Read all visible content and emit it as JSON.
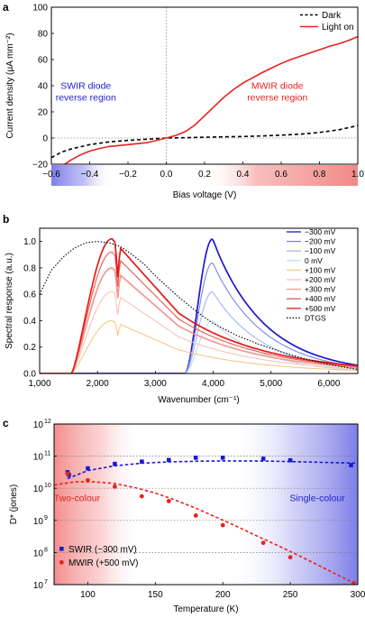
{
  "panels": {
    "a": {
      "letter": "a",
      "chart_data": {
        "type": "line",
        "xlabel": "Bias voltage (V)",
        "ylabel": "Current density (μA mm⁻²)",
        "xlim": [
          -0.6,
          1.0
        ],
        "ylim": [
          -20,
          100
        ],
        "xticks": [
          "−0.6",
          "−0.4",
          "−0.2",
          "0.0",
          "0.2",
          "0.4",
          "0.6",
          "0.8",
          "1.0"
        ],
        "xtick_values": [
          -0.6,
          -0.4,
          -0.2,
          0.0,
          0.2,
          0.4,
          0.6,
          0.8,
          1.0
        ],
        "yticks": [
          "−20",
          "0",
          "20",
          "40",
          "60",
          "80",
          "100"
        ],
        "ytick_values": [
          -20,
          0,
          20,
          40,
          60,
          80,
          100
        ],
        "legend_position": "top-right",
        "series": [
          {
            "name": "Dark",
            "style": "dashed",
            "color": "#000000",
            "x": [
              -0.6,
              -0.55,
              -0.5,
              -0.4,
              -0.3,
              -0.2,
              -0.1,
              0.0,
              0.1,
              0.2,
              0.3,
              0.4,
              0.5,
              0.6,
              0.7,
              0.8,
              0.9,
              1.0
            ],
            "y": [
              -15,
              -11,
              -8.5,
              -5,
              -3,
              -1.8,
              -0.9,
              0,
              0.3,
              0.6,
              0.9,
              1.2,
              1.6,
              2.2,
              3,
              4.3,
              6.3,
              9.5
            ]
          },
          {
            "name": "Light on",
            "style": "solid",
            "color": "#e8221e",
            "x": [
              -0.6,
              -0.55,
              -0.5,
              -0.45,
              -0.4,
              -0.35,
              -0.3,
              -0.2,
              -0.1,
              0.0,
              0.05,
              0.1,
              0.15,
              0.2,
              0.25,
              0.3,
              0.35,
              0.4,
              0.45,
              0.5,
              0.55,
              0.6,
              0.65,
              0.7,
              0.75,
              0.8,
              0.85,
              0.9,
              0.95,
              1.0
            ],
            "y": [
              -30,
              -22,
              -17,
              -13,
              -10,
              -8,
              -6.5,
              -5,
              -3.5,
              0,
              2,
              5,
              10,
              17,
              24,
              31,
              37,
              42,
              46,
              50,
              53.5,
              57,
              60,
              62.5,
              65,
              67.5,
              70,
              72,
              74.5,
              77.5
            ]
          }
        ],
        "annotations": [
          {
            "text": "SWIR diode\nreverse region",
            "color": "#2222cc",
            "x": -0.42,
            "y": 35
          },
          {
            "text": "MWIR diode\nreverse region",
            "color": "#e8221e",
            "x": 0.58,
            "y": 35
          }
        ],
        "shaded_regions": [
          {
            "x": [
              -0.6,
              -0.28
            ],
            "color": "#7c7cf0",
            "note": "gradient below axis"
          },
          {
            "x": [
              0.18,
              1.0
            ],
            "color": "#f08080",
            "note": "gradient below axis"
          }
        ]
      }
    },
    "b": {
      "letter": "b",
      "chart_data": {
        "type": "line",
        "xlabel": "Wavenumber (cm⁻¹)",
        "ylabel": "Spectral response (a.u.)",
        "xlim": [
          1000,
          6500
        ],
        "ylim": [
          0,
          1.1
        ],
        "xticks": [
          "1,000",
          "2,000",
          "3,000",
          "4,000",
          "5,000",
          "6,000"
        ],
        "xtick_values": [
          1000,
          2000,
          3000,
          4000,
          5000,
          6000
        ],
        "yticks": [
          "0.0",
          "0.2",
          "0.4",
          "0.6",
          "0.8",
          "1.0"
        ],
        "ytick_values": [
          0,
          0.2,
          0.4,
          0.6,
          0.8,
          1.0
        ],
        "legend_position": "top-right",
        "series": [
          {
            "name": "−300 mV",
            "color": "#1a1acd",
            "band": "swir",
            "peak": 1.02
          },
          {
            "name": "−200 mV",
            "color": "#7a86e0",
            "band": "swir",
            "peak": 0.84
          },
          {
            "name": "−100 mV",
            "color": "#9fb8ee",
            "band": "swir",
            "peak": 0.62
          },
          {
            "name": "0 mV",
            "color": "#c9d8f4",
            "band": "swir",
            "peak": 0.4
          },
          {
            "name": "+100 mV",
            "color": "#f5c98a",
            "band": "mwir",
            "peak": 0.4
          },
          {
            "name": "+200 mV",
            "color": "#f6c3b8",
            "band": "mwir",
            "peak": 0.62
          },
          {
            "name": "+300 mV",
            "color": "#ee9a90",
            "band": "mwir",
            "peak": 0.8
          },
          {
            "name": "+400 mV",
            "color": "#e85a4f",
            "band": "mwir",
            "peak": 0.92
          },
          {
            "name": "+500 mV",
            "color": "#e41a1a",
            "band": "mwir",
            "peak": 1.02
          },
          {
            "name": "DTGS",
            "color": "#000000",
            "band": "dtgs",
            "style": "dotted",
            "x": [
              1000,
              1200,
              1400,
              1600,
              1800,
              2000,
              2200,
              2400,
              2600,
              2800,
              3000,
              3200,
              3400,
              3600,
              3800,
              4000,
              4400,
              4800,
              5200,
              5600,
              6000,
              6500
            ],
            "y": [
              0.6,
              0.78,
              0.88,
              0.95,
              0.99,
              1.0,
              0.99,
              0.96,
              0.9,
              0.83,
              0.74,
              0.66,
              0.58,
              0.51,
              0.44,
              0.38,
              0.29,
              0.22,
              0.16,
              0.11,
              0.07,
              0.03
            ]
          }
        ]
      }
    },
    "c": {
      "letter": "c",
      "chart_data": {
        "type": "scatter",
        "xlabel": "Temperature (K)",
        "ylabel": "D* (jones)",
        "xlim": [
          75,
          300
        ],
        "ylim_log10": [
          7,
          12
        ],
        "log_y": true,
        "xticks": [
          "100",
          "150",
          "200",
          "250",
          "300"
        ],
        "xtick_values": [
          100,
          150,
          200,
          250,
          300
        ],
        "yticks_exp": [
          "7",
          "8",
          "9",
          "10",
          "11",
          "12"
        ],
        "ytick_log_values": [
          7,
          8,
          9,
          10,
          11,
          12
        ],
        "ytick_base": "10",
        "legend_position": "bottom-left",
        "annotations": [
          {
            "text": "Two-colour",
            "color": "#e8221e",
            "x": 92,
            "y_log10": 9.6
          },
          {
            "text": "Single-colour",
            "color": "#2222cc",
            "x": 270,
            "y_log10": 9.6
          }
        ],
        "series": [
          {
            "name": "SWIR (−300 mV)",
            "color": "#1a1acd",
            "marker": "square",
            "x": [
              85,
              86,
              100,
              120,
              140,
              160,
              180,
              200,
              230,
              250,
              295
            ],
            "y_log10": [
              10.5,
              10.42,
              10.62,
              10.76,
              10.83,
              10.88,
              10.95,
              10.95,
              10.92,
              10.87,
              10.72
            ],
            "fit_x": [
              85,
              100,
              120,
              140,
              160,
              180,
              200,
              220,
              240,
              260,
              280,
              300
            ],
            "fit_y_log10": [
              10.3,
              10.55,
              10.7,
              10.78,
              10.82,
              10.84,
              10.85,
              10.85,
              10.84,
              10.82,
              10.8,
              10.78
            ]
          },
          {
            "name": "MWIR (+500 mV)",
            "color": "#e8221e",
            "marker": "circle",
            "x": [
              85,
              100,
              120,
              140,
              160,
              180,
              200,
              230,
              250,
              297
            ],
            "y_log10": [
              10.45,
              10.25,
              10.05,
              9.75,
              9.6,
              9.15,
              8.85,
              8.3,
              7.85,
              7.05
            ],
            "fit_x": [
              75,
              90,
              105,
              120,
              135,
              150,
              165,
              180,
              195,
              210,
              225,
              240,
              255,
              270,
              285,
              300
            ],
            "fit_y_log10": [
              10.1,
              10.2,
              10.2,
              10.15,
              10.02,
              9.85,
              9.63,
              9.38,
              9.1,
              8.82,
              8.52,
              8.23,
              7.93,
              7.62,
              7.3,
              7.0
            ]
          }
        ]
      }
    }
  }
}
